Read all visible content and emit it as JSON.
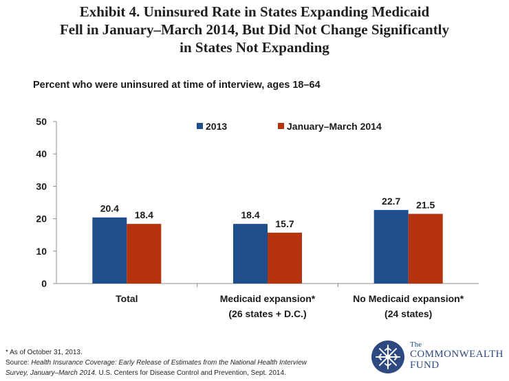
{
  "header": {
    "title_lines": [
      "Exhibit 4. Uninsured Rate in States Expanding Medicaid",
      "Fell in January–March 2014, But Did Not Change Significantly",
      "in States Not Expanding"
    ],
    "subtitle": "Percent who were uninsured at time of interview, ages 18–64"
  },
  "chart_data": {
    "type": "bar",
    "title": "Exhibit 4. Uninsured Rate in States Expanding Medicaid Fell in January–March 2014, But Did Not Change Significantly in States Not Expanding",
    "subtitle": "Percent who were uninsured at time of interview, ages 18–64",
    "categories": [
      [
        "Total"
      ],
      [
        "Medicaid expansion*",
        "(26 states + D.C.)"
      ],
      [
        "No Medicaid expansion*",
        "(24 states)"
      ]
    ],
    "series": [
      {
        "name": "2013",
        "values": [
          20.4,
          18.4,
          22.7
        ],
        "labels": [
          "20.4",
          "18.4",
          "22.7"
        ],
        "color": "#1f4e8c"
      },
      {
        "name": "January–March 2014",
        "values": [
          18.4,
          15.7,
          21.5
        ],
        "labels": [
          "18.4",
          "15.7",
          "21.5"
        ],
        "color": "#b5330f"
      }
    ],
    "ylim": [
      0,
      50
    ],
    "yticks": [
      0,
      10,
      20,
      30,
      40,
      50
    ],
    "xlabel": "",
    "ylabel": "",
    "legend": "top-center",
    "grid": false
  },
  "footnote": {
    "asterisk_note": "* As of October 31, 2013.",
    "source_label": "Source: ",
    "source_title": "Health Insurance Coverage: Early Release of Estimates from the National Health Interview",
    "source_title_cont": "Survey, January–March 2014.",
    "source_rest": " U.S. Centers for Disease Control and Prevention, Sept. 2014."
  },
  "logo": {
    "line1": "The",
    "line2": "COMMONWEALTH",
    "line3": "FUND",
    "color": "#2c4a7f"
  }
}
